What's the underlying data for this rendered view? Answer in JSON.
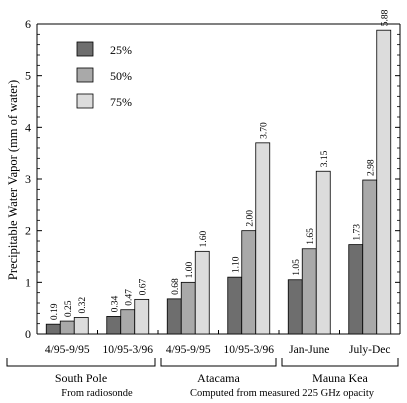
{
  "chart_data": {
    "type": "bar",
    "ylabel": "Precipitable Water Vapor (mm of water)",
    "ylim": [
      0,
      6
    ],
    "yticks": [
      "0",
      "1",
      "2",
      "3",
      "4",
      "5",
      "6"
    ],
    "categories": [
      "4/95-9/95",
      "10/95-3/96",
      "4/95-9/95",
      "10/95-3/96",
      "Jan-June",
      "July-Dec"
    ],
    "series": [
      {
        "name": "25%",
        "color": "#6e6e6e",
        "values": [
          0.19,
          0.34,
          0.68,
          1.1,
          1.05,
          1.73
        ]
      },
      {
        "name": "50%",
        "color": "#a9a9a9",
        "values": [
          0.25,
          0.47,
          1.0,
          2.0,
          1.65,
          2.98
        ]
      },
      {
        "name": "75%",
        "color": "#dcdcdc",
        "values": [
          0.32,
          0.67,
          1.6,
          3.7,
          3.15,
          5.88
        ]
      }
    ],
    "data_labels": [
      [
        "0.19",
        "0.34",
        "0.68",
        "1.10",
        "1.05",
        "1.73"
      ],
      [
        "0.25",
        "0.47",
        "1.00",
        "2.00",
        "1.65",
        "2.98"
      ],
      [
        "0.32",
        "0.67",
        "1.60",
        "3.70",
        "3.15",
        "5.88"
      ]
    ],
    "groups": [
      {
        "label": "South Pole"
      },
      {
        "label": "Atacama"
      },
      {
        "label": "Mauna Kea"
      }
    ],
    "annotations": [
      "From radiosonde",
      "Computed from measured 225 GHz opacity"
    ],
    "legend_position": "top-left",
    "grid": false
  }
}
